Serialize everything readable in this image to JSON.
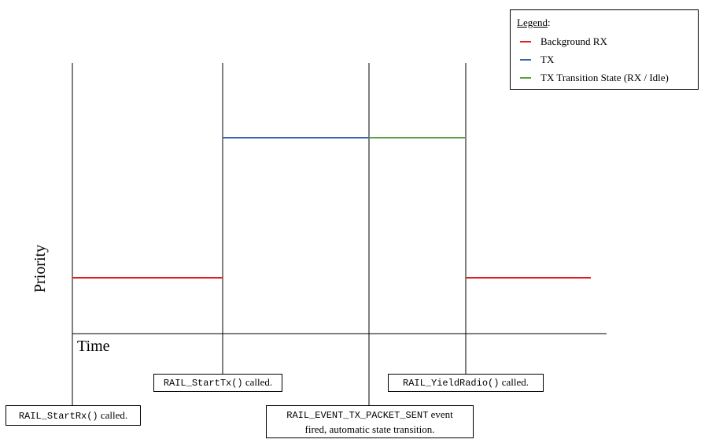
{
  "legend": {
    "title_underlined": "Legend",
    "title_suffix": ":",
    "items": [
      {
        "label": "Background RX",
        "color": "#e02020"
      },
      {
        "label": "TX",
        "color": "#3565b5"
      },
      {
        "label": "TX Transition State (RX / Idle)",
        "color": "#5aa040"
      }
    ]
  },
  "axes": {
    "x_label": "Time",
    "y_label": "Priority"
  },
  "events": [
    {
      "code": "RAIL_StartRx()",
      "text": " called."
    },
    {
      "code": "RAIL_StartTx()",
      "text": " called."
    },
    {
      "code": "RAIL_EVENT_TX_PACKET_SENT",
      "text": " event",
      "line2": "fired, automatic state transition."
    },
    {
      "code": "RAIL_YieldRadio()",
      "text": " called."
    }
  ],
  "colors": {
    "background_rx": "#e02020",
    "tx": "#3565b5",
    "transition": "#5aa040",
    "axis": "#000000"
  }
}
